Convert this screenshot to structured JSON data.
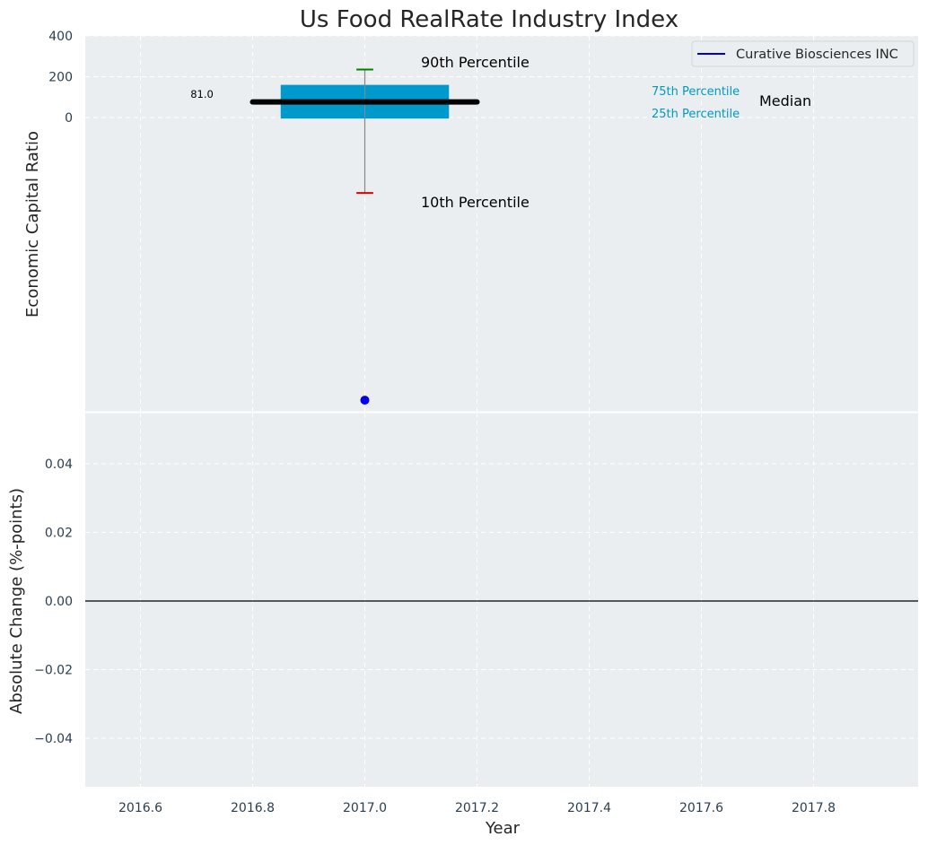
{
  "chart_data": {
    "type": "boxplot_with_change_panel",
    "title": "Us Food RealRate Industry Index",
    "xlabel": "Year",
    "x_ticks": [
      "2016.6",
      "2016.8",
      "2017.0",
      "2017.2",
      "2017.4",
      "2017.6",
      "2017.8"
    ],
    "xlim": [
      2016.5,
      1017.99
    ],
    "top_panel": {
      "ylabel": "Economic Capital Ratio",
      "y_ticks": [
        "400",
        "200",
        "0"
      ],
      "ylim": [
        -1440,
        400
      ],
      "box": {
        "x": 2017.0,
        "p10": -370,
        "p25": -5,
        "median": 81.0,
        "p75": 160,
        "p90": 235
      },
      "median_value_label": "81.0",
      "company_point": {
        "x": 2017.0,
        "y": -1385
      },
      "annotations": {
        "p90": "90th Percentile",
        "p10": "10th Percentile",
        "p75": "75th Percentile",
        "p25": "25th Percentile",
        "median": "Median"
      },
      "legend": {
        "label": "Curative Biosciences INC",
        "color": "#0000cc",
        "position": "top-right"
      }
    },
    "bottom_panel": {
      "ylabel": "Absolute Change (%-points)",
      "y_ticks": [
        "0.04",
        "0.02",
        "0.00",
        "−0.02",
        "−0.04"
      ],
      "ylim": [
        -0.055,
        0.055
      ],
      "zero_line": 0.0
    },
    "grid": true,
    "colors": {
      "box": "#0099cc",
      "median": "#000000",
      "p90_cap": "#008000",
      "p10_cap": "#e00000",
      "whisker": "#888888",
      "company": "#0000ee",
      "panel_bg": "#eaeef0"
    }
  }
}
